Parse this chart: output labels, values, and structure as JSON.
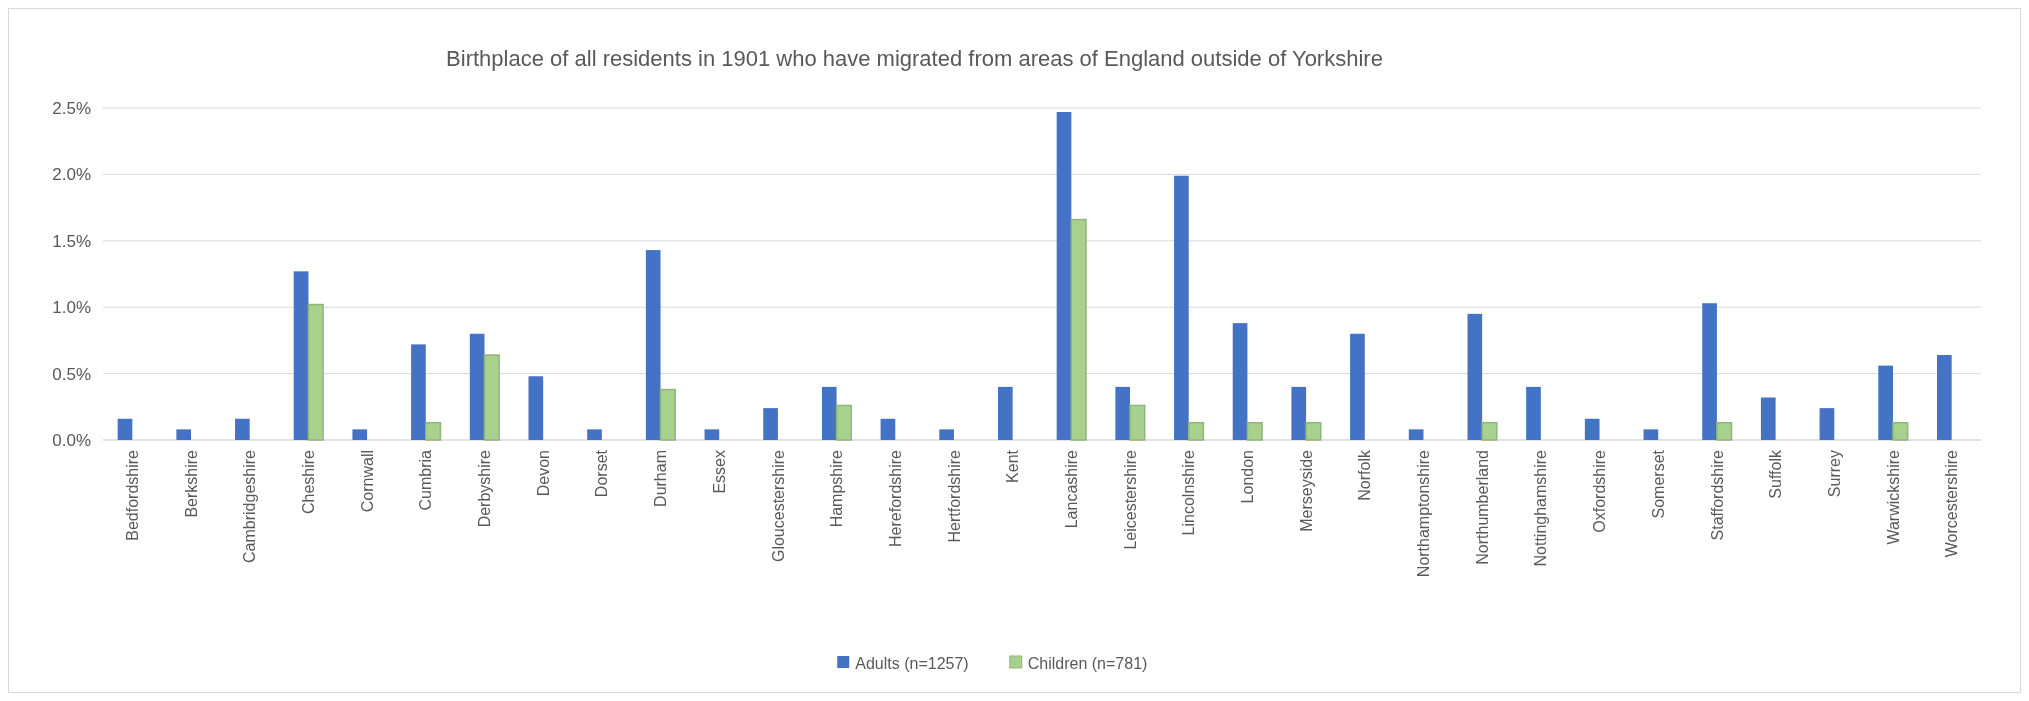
{
  "chart_data": {
    "type": "bar",
    "title": "Birthplace of all residents in 1901 who have migrated from areas of England outside of Yorkshire",
    "categories": [
      "Bedfordshire",
      "Berkshire",
      "Cambridgeshire",
      "Cheshire",
      "Cornwall",
      "Cumbria",
      "Derbyshire",
      "Devon",
      "Dorset",
      "Durham",
      "Essex",
      "Gloucestershire",
      "Hampshire",
      "Herefordshire",
      "Hertfordshire",
      "Kent",
      "Lancashire",
      "Leicestershire",
      "Lincolnshire",
      "London",
      "Merseyside",
      "Norfolk",
      "Northamptonshire",
      "Northumberland",
      "Nottinghamshire",
      "Oxfordshire",
      "Somerset",
      "Staffordshire",
      "Suffolk",
      "Surrey",
      "Warwickshire",
      "Worcestershire"
    ],
    "series": [
      {
        "name": "Adults (n=1257)",
        "color": "#4472c4",
        "values": [
          0.16,
          0.08,
          0.16,
          1.27,
          0.08,
          0.72,
          0.8,
          0.48,
          0.08,
          1.43,
          0.08,
          0.24,
          0.4,
          0.16,
          0.08,
          0.4,
          2.47,
          0.4,
          1.99,
          0.88,
          0.4,
          0.8,
          0.08,
          0.95,
          0.4,
          0.16,
          0.08,
          1.03,
          0.32,
          0.24,
          0.56,
          0.64
        ]
      },
      {
        "name": "Children (n=781)",
        "color": "#a9d18e",
        "values": [
          null,
          null,
          null,
          1.02,
          null,
          0.13,
          0.64,
          null,
          null,
          0.38,
          null,
          null,
          0.26,
          null,
          null,
          null,
          1.66,
          0.26,
          0.13,
          0.13,
          0.13,
          null,
          null,
          0.13,
          null,
          null,
          null,
          0.13,
          null,
          null,
          0.13,
          null
        ]
      }
    ],
    "ylim": [
      0,
      2.5
    ],
    "yticks": [
      {
        "value": 0,
        "label": "0.0%"
      },
      {
        "value": 0.5,
        "label": "0.5%"
      },
      {
        "value": 1,
        "label": "1.0%"
      },
      {
        "value": 1.5,
        "label": "1.5%"
      },
      {
        "value": 2,
        "label": "2.0%"
      },
      {
        "value": 2.5,
        "label": "2.5%"
      }
    ],
    "grid": "y",
    "legend": "bottom"
  }
}
